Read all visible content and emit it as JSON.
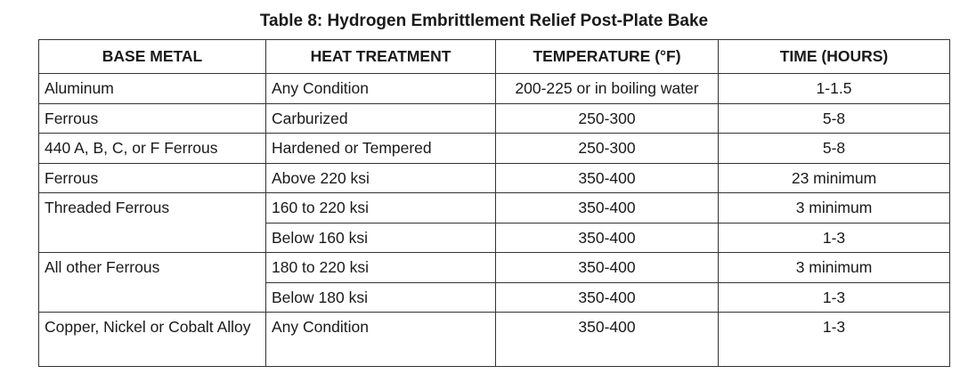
{
  "title": "Table 8:  Hydrogen Embrittlement Relief Post-Plate Bake",
  "table": {
    "headers": [
      "BASE METAL",
      "HEAT TREATMENT",
      "TEMPERATURE (°F)",
      "TIME (HOURS)"
    ],
    "rows": [
      {
        "base_metal": "Aluminum",
        "treatments": [
          [
            "Any Condition",
            "200-225 or in boiling water",
            "1-1.5"
          ]
        ]
      },
      {
        "base_metal": "Ferrous",
        "treatments": [
          [
            "Carburized",
            "250-300",
            "5-8"
          ]
        ]
      },
      {
        "base_metal": "440 A, B, C, or F Ferrous",
        "treatments": [
          [
            "Hardened or Tempered",
            "250-300",
            "5-8"
          ]
        ]
      },
      {
        "base_metal": "Ferrous",
        "treatments": [
          [
            "Above 220 ksi",
            "350-400",
            "23 minimum"
          ]
        ]
      },
      {
        "base_metal": "Threaded Ferrous",
        "treatments": [
          [
            "160 to 220 ksi",
            "350-400",
            "3 minimum"
          ],
          [
            "Below 160 ksi",
            "350-400",
            "1-3"
          ]
        ]
      },
      {
        "base_metal": "All other Ferrous",
        "treatments": [
          [
            "180 to 220 ksi",
            "350-400",
            "3 minimum"
          ],
          [
            "Below 180 ksi",
            "350-400",
            "1-3"
          ]
        ]
      },
      {
        "base_metal": "Copper, Nickel or Cobalt Alloy",
        "treatments": [
          [
            "Any Condition",
            "350-400",
            "1-3"
          ]
        ]
      }
    ]
  }
}
